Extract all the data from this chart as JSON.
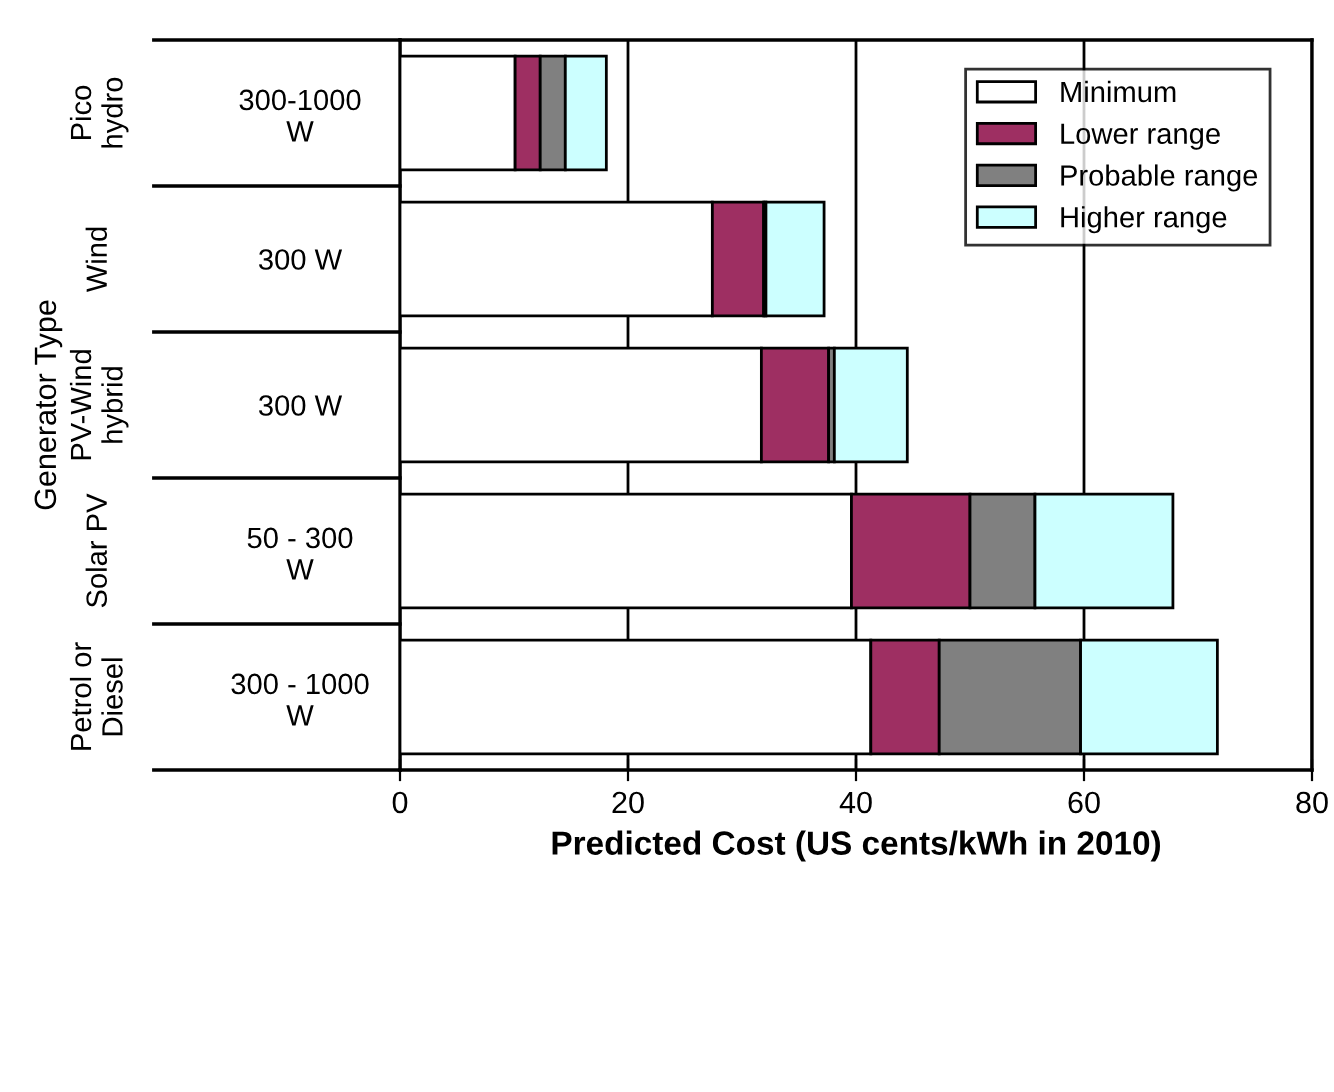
{
  "chart_data": {
    "type": "bar",
    "orientation": "horizontal",
    "stacked": true,
    "categories": [
      "300-1000\nW",
      "300 W",
      "300 W",
      "50 - 300\nW",
      "300 - 1000\nW"
    ],
    "series": [
      {
        "name": "Minimum",
        "color": "#ffffff",
        "values": [
          10.1,
          27.4,
          31.7,
          39.6,
          41.3
        ]
      },
      {
        "name": "Lower range",
        "color": "#9e2f62",
        "values": [
          2.2,
          4.5,
          5.9,
          10.4,
          6.0
        ]
      },
      {
        "name": "Probable range",
        "color": "#808080",
        "values": [
          2.2,
          0.2,
          0.5,
          5.7,
          12.4
        ]
      },
      {
        "name": "Higher range",
        "color": "#ccffff",
        "values": [
          3.6,
          5.1,
          6.4,
          12.1,
          12.0
        ]
      }
    ],
    "annotations": [
      "Generator Type",
      "Pico\nhydro",
      "Wind",
      "PV-Wind\nhybrid",
      "Solar PV",
      "Petrol or\nDiesel"
    ],
    "xlabel": "Predicted Cost (US cents/kWh in 2010)",
    "xlim": [
      0,
      80
    ],
    "xticks": [
      0,
      20,
      40,
      60,
      80
    ],
    "grid": "x",
    "legend": "top right"
  }
}
